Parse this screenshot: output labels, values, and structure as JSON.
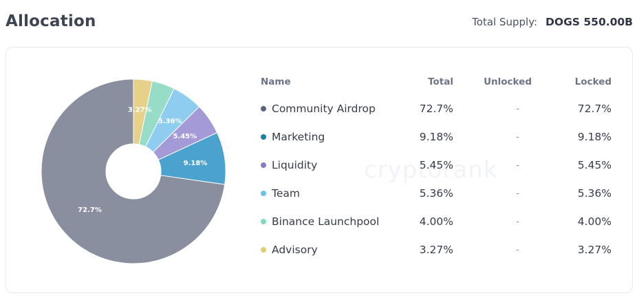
{
  "header": {
    "title": "Allocation",
    "supply_label": "Total Supply:",
    "supply_value": "DOGS 550.00B"
  },
  "watermark": "cryptorank",
  "table": {
    "columns": [
      "Name",
      "Total",
      "Unlocked",
      "Locked"
    ],
    "rows": [
      {
        "name": "Community Airdrop",
        "total": "72.7%",
        "unlocked": "-",
        "locked": "72.7%"
      },
      {
        "name": "Marketing",
        "total": "9.18%",
        "unlocked": "-",
        "locked": "9.18%"
      },
      {
        "name": "Liquidity",
        "total": "5.45%",
        "unlocked": "-",
        "locked": "5.45%"
      },
      {
        "name": "Team",
        "total": "5.36%",
        "unlocked": "-",
        "locked": "5.36%"
      },
      {
        "name": "Binance Launchpool",
        "total": "4.00%",
        "unlocked": "-",
        "locked": "4.00%"
      },
      {
        "name": "Advisory",
        "total": "3.27%",
        "unlocked": "-",
        "locked": "3.27%"
      }
    ]
  },
  "chart_data": {
    "type": "pie",
    "donut": true,
    "categories": [
      "Community Airdrop",
      "Marketing",
      "Liquidity",
      "Team",
      "Binance Launchpool",
      "Advisory"
    ],
    "values": [
      72.7,
      9.18,
      5.45,
      5.36,
      4.0,
      3.27
    ],
    "labels": [
      "72.7%",
      "9.18%",
      "5.45%",
      "5.36%",
      "",
      "3.27%"
    ],
    "colors": [
      "#8a8fa0",
      "#4ba2cf",
      "#a59ad8",
      "#8ecdf0",
      "#97dcc6",
      "#e6d18a"
    ],
    "dot_colors": [
      "#5c6480",
      "#1b7fa8",
      "#8a78c8",
      "#6ec0ea",
      "#7fd8c0",
      "#e2cc72"
    ]
  }
}
